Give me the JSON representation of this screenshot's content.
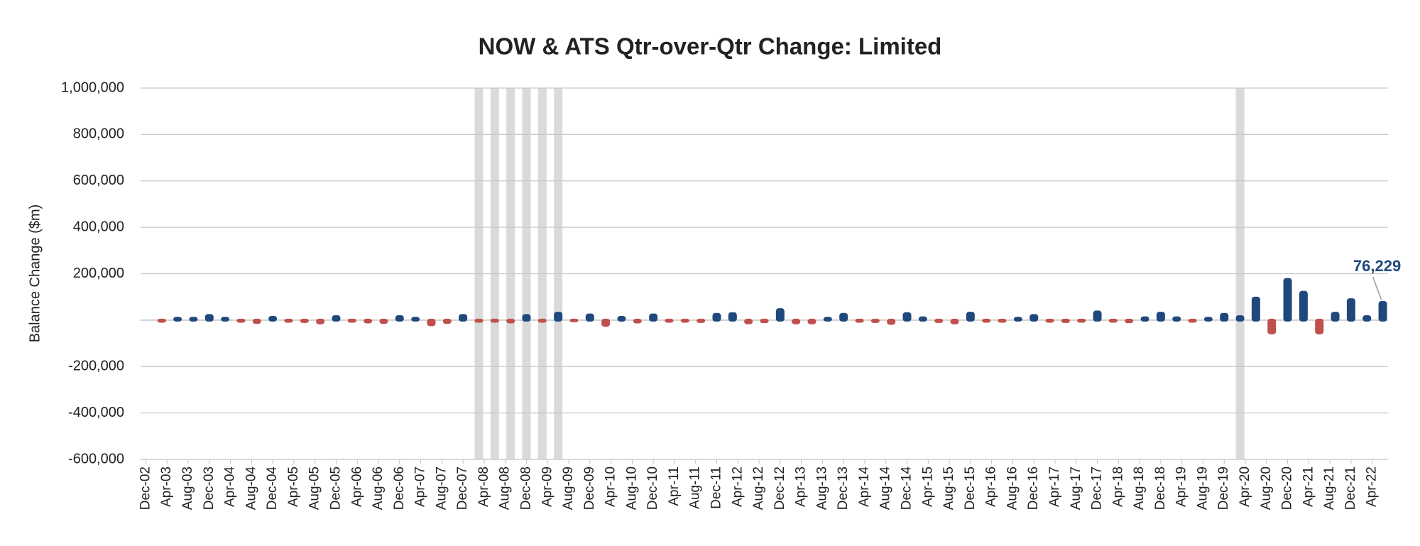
{
  "chart_data": {
    "type": "bar",
    "title": "NOW & ATS Qtr-over-Qtr Change: Limited",
    "y_label": "Balance Change ($m)",
    "ylim": [
      -600000,
      1000000
    ],
    "yticks": [
      {
        "value": -600000,
        "label": "-600,000"
      },
      {
        "value": -400000,
        "label": "-400,000"
      },
      {
        "value": -200000,
        "label": "-200,000"
      },
      {
        "value": 200000,
        "label": "200,000"
      },
      {
        "value": 400000,
        "label": "400,000"
      },
      {
        "value": 600000,
        "label": "600,000"
      },
      {
        "value": 800000,
        "label": "800,000"
      },
      {
        "value": 1000000,
        "label": "1,000,000"
      }
    ],
    "grid": true,
    "xlim": [
      "2002-11",
      "2022-07"
    ],
    "xticks": [
      {
        "value": "2002-12",
        "label": "Dec-02"
      },
      {
        "value": "2003-04",
        "label": "Apr-03"
      },
      {
        "value": "2003-08",
        "label": "Aug-03"
      },
      {
        "value": "2003-12",
        "label": "Dec-03"
      },
      {
        "value": "2004-04",
        "label": "Apr-04"
      },
      {
        "value": "2004-08",
        "label": "Aug-04"
      },
      {
        "value": "2004-12",
        "label": "Dec-04"
      },
      {
        "value": "2005-04",
        "label": "Apr-05"
      },
      {
        "value": "2005-08",
        "label": "Aug-05"
      },
      {
        "value": "2005-12",
        "label": "Dec-05"
      },
      {
        "value": "2006-04",
        "label": "Apr-06"
      },
      {
        "value": "2006-08",
        "label": "Aug-06"
      },
      {
        "value": "2006-12",
        "label": "Dec-06"
      },
      {
        "value": "2007-04",
        "label": "Apr-07"
      },
      {
        "value": "2007-08",
        "label": "Aug-07"
      },
      {
        "value": "2007-12",
        "label": "Dec-07"
      },
      {
        "value": "2008-04",
        "label": "Apr-08"
      },
      {
        "value": "2008-08",
        "label": "Aug-08"
      },
      {
        "value": "2008-12",
        "label": "Dec-08"
      },
      {
        "value": "2009-04",
        "label": "Apr-09"
      },
      {
        "value": "2009-08",
        "label": "Aug-09"
      },
      {
        "value": "2009-12",
        "label": "Dec-09"
      },
      {
        "value": "2010-04",
        "label": "Apr-10"
      },
      {
        "value": "2010-08",
        "label": "Aug-10"
      },
      {
        "value": "2010-12",
        "label": "Dec-10"
      },
      {
        "value": "2011-04",
        "label": "Apr-11"
      },
      {
        "value": "2011-08",
        "label": "Aug-11"
      },
      {
        "value": "2011-12",
        "label": "Dec-11"
      },
      {
        "value": "2012-04",
        "label": "Apr-12"
      },
      {
        "value": "2012-08",
        "label": "Aug-12"
      },
      {
        "value": "2012-12",
        "label": "Dec-12"
      },
      {
        "value": "2013-04",
        "label": "Apr-13"
      },
      {
        "value": "2013-08",
        "label": "Aug-13"
      },
      {
        "value": "2013-12",
        "label": "Dec-13"
      },
      {
        "value": "2014-04",
        "label": "Apr-14"
      },
      {
        "value": "2014-08",
        "label": "Aug-14"
      },
      {
        "value": "2014-12",
        "label": "Dec-14"
      },
      {
        "value": "2015-04",
        "label": "Apr-15"
      },
      {
        "value": "2015-08",
        "label": "Aug-15"
      },
      {
        "value": "2015-12",
        "label": "Dec-15"
      },
      {
        "value": "2016-04",
        "label": "Apr-16"
      },
      {
        "value": "2016-08",
        "label": "Aug-16"
      },
      {
        "value": "2016-12",
        "label": "Dec-16"
      },
      {
        "value": "2017-04",
        "label": "Apr-17"
      },
      {
        "value": "2017-08",
        "label": "Aug-17"
      },
      {
        "value": "2017-12",
        "label": "Dec-17"
      },
      {
        "value": "2018-04",
        "label": "Apr-18"
      },
      {
        "value": "2018-08",
        "label": "Aug-18"
      },
      {
        "value": "2018-12",
        "label": "Dec-18"
      },
      {
        "value": "2019-04",
        "label": "Apr-19"
      },
      {
        "value": "2019-08",
        "label": "Aug-19"
      },
      {
        "value": "2019-12",
        "label": "Dec-19"
      },
      {
        "value": "2020-04",
        "label": "Apr-20"
      },
      {
        "value": "2020-08",
        "label": "Aug-20"
      },
      {
        "value": "2020-12",
        "label": "Dec-20"
      },
      {
        "value": "2021-04",
        "label": "Apr-21"
      },
      {
        "value": "2021-08",
        "label": "Aug-21"
      },
      {
        "value": "2021-12",
        "label": "Dec-21"
      },
      {
        "value": "2022-04",
        "label": "Apr-22"
      }
    ],
    "shaded_periods": [
      "2008-03",
      "2008-06",
      "2008-09",
      "2008-12",
      "2009-03",
      "2009-06",
      "2020-03"
    ],
    "shade_color": "#d4d4d4",
    "positive_color": "#1f497d",
    "negative_color": "#c0504d",
    "x": [
      "2003-03",
      "2003-06",
      "2003-09",
      "2003-12",
      "2004-03",
      "2004-06",
      "2004-09",
      "2004-12",
      "2005-03",
      "2005-06",
      "2005-09",
      "2005-12",
      "2006-03",
      "2006-06",
      "2006-09",
      "2006-12",
      "2007-03",
      "2007-06",
      "2007-09",
      "2007-12",
      "2008-03",
      "2008-06",
      "2008-09",
      "2008-12",
      "2009-03",
      "2009-06",
      "2009-09",
      "2009-12",
      "2010-03",
      "2010-06",
      "2010-09",
      "2010-12",
      "2011-03",
      "2011-06",
      "2011-09",
      "2011-12",
      "2012-03",
      "2012-06",
      "2012-09",
      "2012-12",
      "2013-03",
      "2013-06",
      "2013-09",
      "2013-12",
      "2014-03",
      "2014-06",
      "2014-09",
      "2014-12",
      "2015-03",
      "2015-06",
      "2015-09",
      "2015-12",
      "2016-03",
      "2016-06",
      "2016-09",
      "2016-12",
      "2017-03",
      "2017-06",
      "2017-09",
      "2017-12",
      "2018-03",
      "2018-06",
      "2018-09",
      "2018-12",
      "2019-03",
      "2019-06",
      "2019-09",
      "2019-12",
      "2020-03",
      "2020-06",
      "2020-09",
      "2020-12",
      "2021-03",
      "2021-06",
      "2021-09",
      "2021-12",
      "2022-03",
      "2022-06"
    ],
    "values": [
      -5000,
      8000,
      8000,
      20000,
      8000,
      -5000,
      -10000,
      12000,
      -5000,
      -6000,
      -12000,
      15000,
      -5000,
      -8000,
      -10000,
      15000,
      8000,
      -20000,
      -10000,
      20000,
      -5000,
      -5000,
      -8000,
      20000,
      -5000,
      30000,
      -3000,
      22000,
      -22000,
      12000,
      -8000,
      22000,
      -5000,
      -5000,
      -6000,
      25000,
      28000,
      -12000,
      -7000,
      45000,
      -12000,
      -12000,
      8000,
      25000,
      -5000,
      -6000,
      -14000,
      28000,
      10000,
      -6000,
      -12000,
      30000,
      -5000,
      -5000,
      8000,
      20000,
      -5000,
      -6000,
      -5000,
      35000,
      -5000,
      -7000,
      10000,
      30000,
      10000,
      -5000,
      8000,
      25000,
      15000,
      95000,
      -55000,
      175000,
      120000,
      -55000,
      30000,
      88000,
      15000,
      76229
    ],
    "value_labels": [
      null,
      null,
      null,
      null,
      null,
      null,
      null,
      null,
      null,
      null,
      null,
      null,
      null,
      null,
      null,
      null,
      null,
      null,
      null,
      null,
      null,
      null,
      null,
      null,
      null,
      null,
      null,
      null,
      null,
      null,
      null,
      null,
      null,
      null,
      null,
      null,
      null,
      null,
      null,
      null,
      null,
      null,
      null,
      null,
      null,
      null,
      null,
      null,
      null,
      null,
      null,
      null,
      null,
      null,
      null,
      null,
      null,
      null,
      null,
      null,
      null,
      null,
      null,
      null,
      null,
      null,
      null,
      null,
      null,
      null,
      null,
      null,
      null,
      null,
      null,
      null,
      null,
      "76,229"
    ]
  }
}
